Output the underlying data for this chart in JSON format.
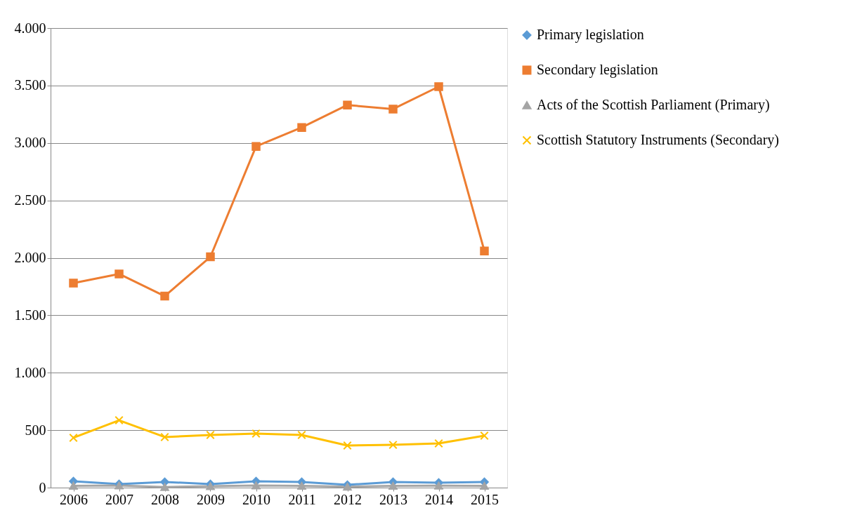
{
  "chart_data": {
    "type": "line",
    "categories": [
      "2006",
      "2007",
      "2008",
      "2009",
      "2010",
      "2011",
      "2012",
      "2013",
      "2014",
      "2015"
    ],
    "series": [
      {
        "name": "Primary legislation",
        "color": "#5b9bd5",
        "marker": "diamond",
        "values": [
          55,
          31,
          49,
          31,
          55,
          49,
          24,
          49,
          43,
          49
        ]
      },
      {
        "name": "Secondary legislation",
        "color": "#ed7d31",
        "marker": "square",
        "values": [
          1780,
          1860,
          1667,
          2009,
          2970,
          3135,
          3330,
          3295,
          3490,
          2060
        ]
      },
      {
        "name": "Acts of the Scottish Parliament (Primary)",
        "color": "#a5a5a5",
        "marker": "triangle",
        "values": [
          16,
          18,
          5,
          12,
          18,
          15,
          8,
          15,
          17,
          15
        ]
      },
      {
        "name": "Scottish Statutory Instruments (Secondary)",
        "color": "#ffc000",
        "marker": "cross",
        "values": [
          434,
          586,
          440,
          458,
          470,
          458,
          366,
          372,
          385,
          452
        ]
      }
    ],
    "ylim": [
      0,
      4000
    ],
    "yticks": [
      0,
      {
        "value": 500,
        "label": "500"
      },
      {
        "value": 1000,
        "label": "1.000"
      },
      {
        "value": 1500,
        "label": "1.500"
      },
      {
        "value": 2000,
        "label": "2.000"
      },
      {
        "value": 2500,
        "label": "2.500"
      },
      {
        "value": 3000,
        "label": "3.000"
      },
      {
        "value": 3500,
        "label": "3.500"
      },
      {
        "value": 4000,
        "label": "4.000"
      }
    ],
    "grid": "y",
    "legend": "right",
    "line_style": "solid"
  }
}
